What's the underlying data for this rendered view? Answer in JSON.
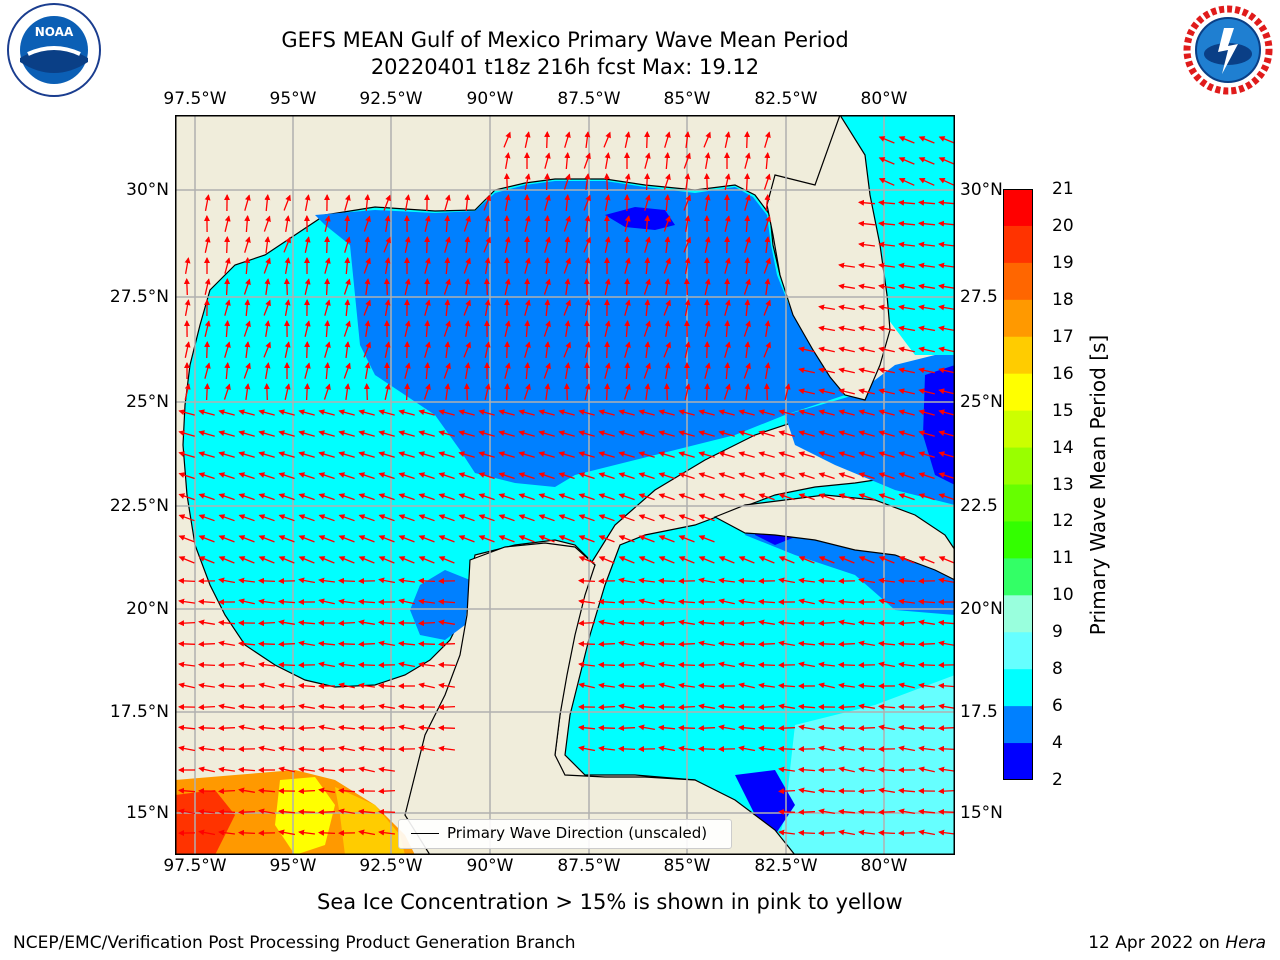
{
  "header": {
    "title_line1": "GEFS MEAN Gulf of Mexico Primary Wave Mean Period",
    "title_line2": "20220401 t18z 216h fcst   Max: 19.12"
  },
  "axes": {
    "lon_labels": [
      "97.5°W",
      "95°W",
      "92.5°W",
      "90°W",
      "87.5°W",
      "85°W",
      "82.5°W",
      "80°W"
    ],
    "lat_labels": [
      "30°N",
      "27.5°N",
      "25°N",
      "22.5°N",
      "20°N",
      "17.5°N",
      "15°N"
    ],
    "lat_labels_right": [
      "30°N",
      "27.5",
      "25°N",
      "22.5",
      "20°N",
      "17.5",
      "15°N"
    ]
  },
  "colorbar": {
    "title": "Primary Wave Mean Period [s]",
    "ticks": [
      "21",
      "20",
      "19",
      "18",
      "17",
      "16",
      "15",
      "14",
      "13",
      "12",
      "11",
      "10",
      "9",
      "8",
      "6",
      "4",
      "2"
    ],
    "colors": [
      "#ff0000",
      "#ff3300",
      "#ff6600",
      "#ff9900",
      "#ffcc00",
      "#ffff00",
      "#ccff00",
      "#99ff00",
      "#66ff00",
      "#33ff00",
      "#33ff66",
      "#99ffdd",
      "#66ffff",
      "#00ffff",
      "#0080ff",
      "#0000ff"
    ]
  },
  "legend": {
    "label": "Primary Wave Direction (unscaled)"
  },
  "note": "Sea Ice Concentration > 15% is shown in pink to yellow",
  "footer": {
    "left": "NCEP/EMC/Verification Post Processing Product Generation Branch",
    "right_date": "12 Apr 2022 on ",
    "right_host": "Hera"
  },
  "logos": {
    "noaa": "NOAA",
    "nws": "NATIONAL WEATHER SERVICE"
  },
  "colors": {
    "land": "#f0eddb",
    "ocean_deep": "#0080ff",
    "ocean_shallow": "#00ffff",
    "arrow": "#ff0000"
  }
}
